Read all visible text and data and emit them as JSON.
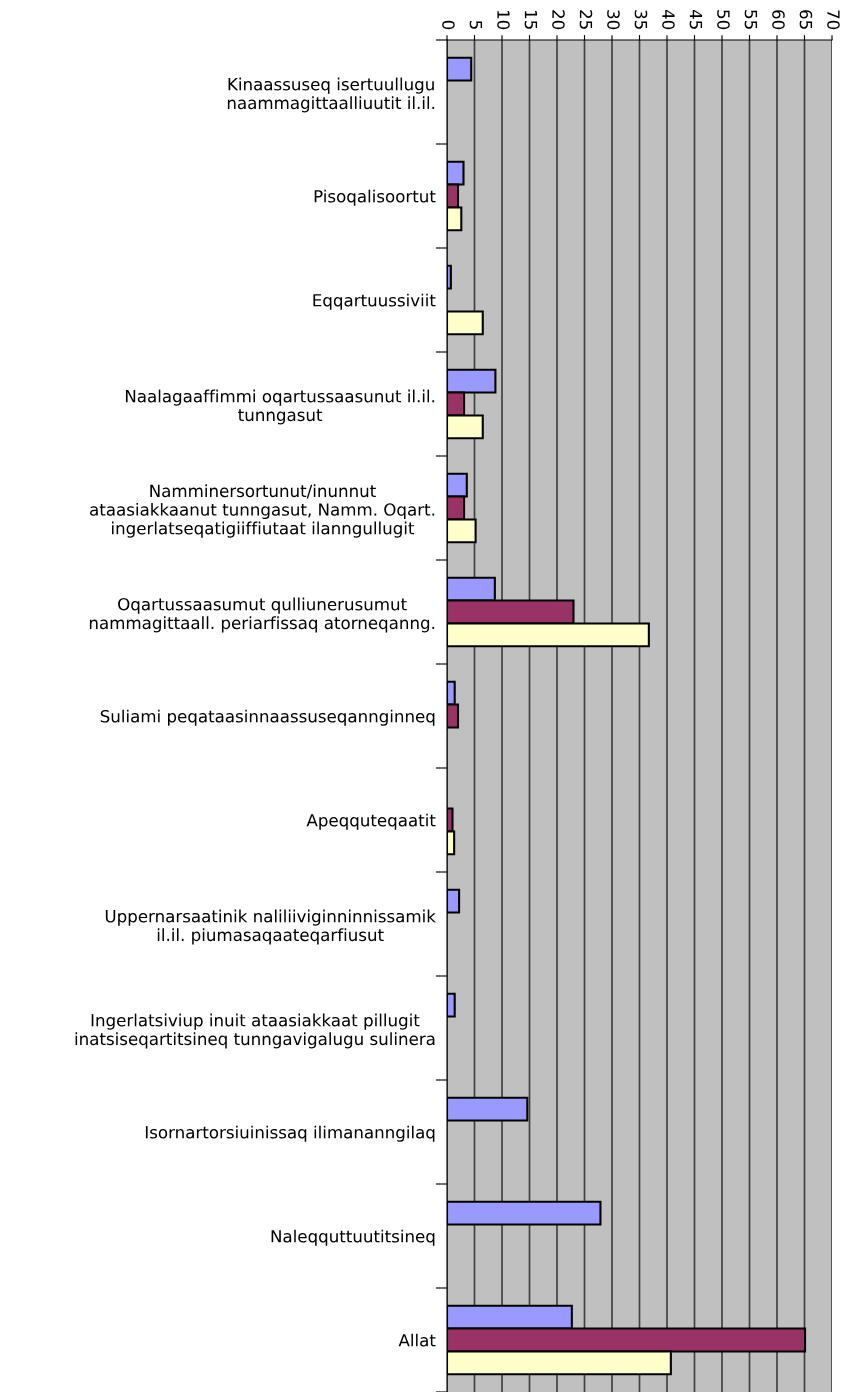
{
  "chart_data": {
    "type": "bar",
    "orientation": "horizontal",
    "categories": [
      "Kinaassuseq isertuullugu\nnaammagittaalliuutit il.il.",
      "Pisoqalisoortut",
      "Eqqartuussiviit",
      "Naalagaaffimmi oqartussaasunut il.il.\ntunngasut",
      "Namminersortunut/inunnut\nataasiakkaanut tunngasut, Namm. Oqart.\ningerlatseqatigiiffiutaat ilanngullugit",
      "Oqartussaasumut qulliunerusumut\nnammagittaall. periarfissaq atorneqanng.",
      "Suliami peqataasinnaassuseqannginneq",
      "Apeqquteqaatit",
      "Uppernarsaatinik naliliiviginninnissamik\nil.il. piumasaqaateqarfiusut",
      "Ingerlatsiviup inuit ataasiakkaat pillugit\ninatsiseqartitsineq tunngavigalugu sulinera",
      "Isornartorsiuinissaq ilimananngilaq",
      "Naleqquttuutitsineq",
      "Allat"
    ],
    "series": [
      {
        "color": "#9999ff",
        "values": [
          4.4,
          3,
          0.7,
          8.8,
          3.6,
          8.7,
          1.4,
          null,
          2.2,
          1.4,
          14.6,
          27.9,
          22.7
        ]
      },
      {
        "color": "#993366",
        "values": [
          null,
          2,
          null,
          3.1,
          3.1,
          23,
          2,
          1,
          null,
          null,
          null,
          null,
          65.1
        ]
      },
      {
        "color": "#ffffcc",
        "values": [
          null,
          2.6,
          6.5,
          6.5,
          5.2,
          36.7,
          null,
          1.3,
          null,
          null,
          null,
          null,
          40.7
        ]
      }
    ],
    "xlim": [
      0,
      70
    ],
    "xticks": [
      0,
      5,
      10,
      15,
      20,
      25,
      30,
      35,
      40,
      45,
      50,
      55,
      60,
      65,
      70
    ],
    "grid": "x",
    "legend": false
  }
}
